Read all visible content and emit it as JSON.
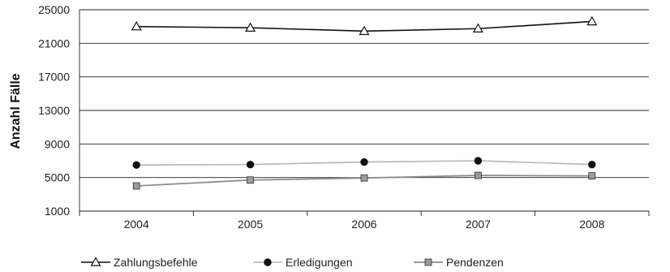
{
  "chart_data": {
    "type": "line",
    "x": [
      "2004",
      "2005",
      "2006",
      "2007",
      "2008"
    ],
    "ylabel": "Anzahl Fälle",
    "xlabel": "",
    "ylim": [
      1000,
      25000
    ],
    "yticks": [
      1000,
      5000,
      9000,
      13000,
      17000,
      21000,
      25000
    ],
    "grid": "horizontal",
    "legend_position": "bottom",
    "series": [
      {
        "name": "Zahlungsbefehle",
        "values": [
          23000,
          22850,
          22450,
          22750,
          23600
        ],
        "color": "#111111",
        "marker": "triangle-open"
      },
      {
        "name": "Erledigungen",
        "values": [
          6500,
          6550,
          6850,
          7000,
          6550
        ],
        "color": "#bdbdbd",
        "marker_color": "#111111",
        "marker": "circle-filled"
      },
      {
        "name": "Pendenzen",
        "values": [
          4000,
          4700,
          4950,
          5250,
          5200
        ],
        "color": "#8c8c8c",
        "marker_color": "#9a9a9a",
        "marker": "square-filled"
      }
    ]
  }
}
